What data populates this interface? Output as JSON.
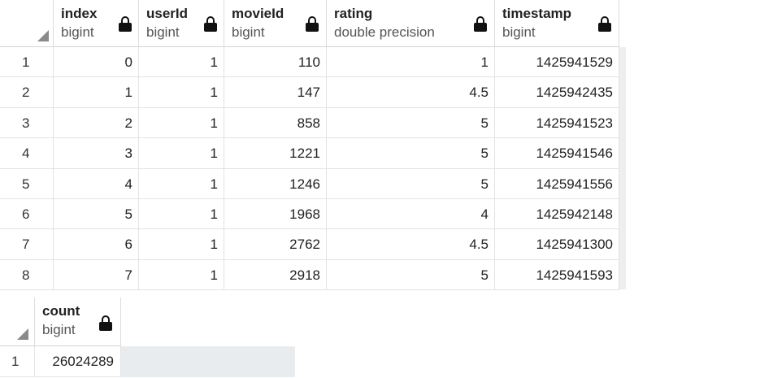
{
  "table1": {
    "columns": [
      {
        "name": "index",
        "type": "bigint"
      },
      {
        "name": "userId",
        "type": "bigint"
      },
      {
        "name": "movieId",
        "type": "bigint"
      },
      {
        "name": "rating",
        "type": "double precision"
      },
      {
        "name": "timestamp",
        "type": "bigint"
      }
    ],
    "rows": [
      {
        "num": "1",
        "cells": [
          "0",
          "1",
          "110",
          "1",
          "1425941529"
        ]
      },
      {
        "num": "2",
        "cells": [
          "1",
          "1",
          "147",
          "4.5",
          "1425942435"
        ]
      },
      {
        "num": "3",
        "cells": [
          "2",
          "1",
          "858",
          "5",
          "1425941523"
        ]
      },
      {
        "num": "4",
        "cells": [
          "3",
          "1",
          "1221",
          "5",
          "1425941546"
        ]
      },
      {
        "num": "5",
        "cells": [
          "4",
          "1",
          "1246",
          "5",
          "1425941556"
        ]
      },
      {
        "num": "6",
        "cells": [
          "5",
          "1",
          "1968",
          "4",
          "1425942148"
        ]
      },
      {
        "num": "7",
        "cells": [
          "6",
          "1",
          "2762",
          "4.5",
          "1425941300"
        ]
      },
      {
        "num": "8",
        "cells": [
          "7",
          "1",
          "2918",
          "5",
          "1425941593"
        ]
      }
    ]
  },
  "table2": {
    "columns": [
      {
        "name": "count",
        "type": "bigint"
      }
    ],
    "rows": [
      {
        "num": "1",
        "cells": [
          "26024289"
        ]
      }
    ]
  }
}
